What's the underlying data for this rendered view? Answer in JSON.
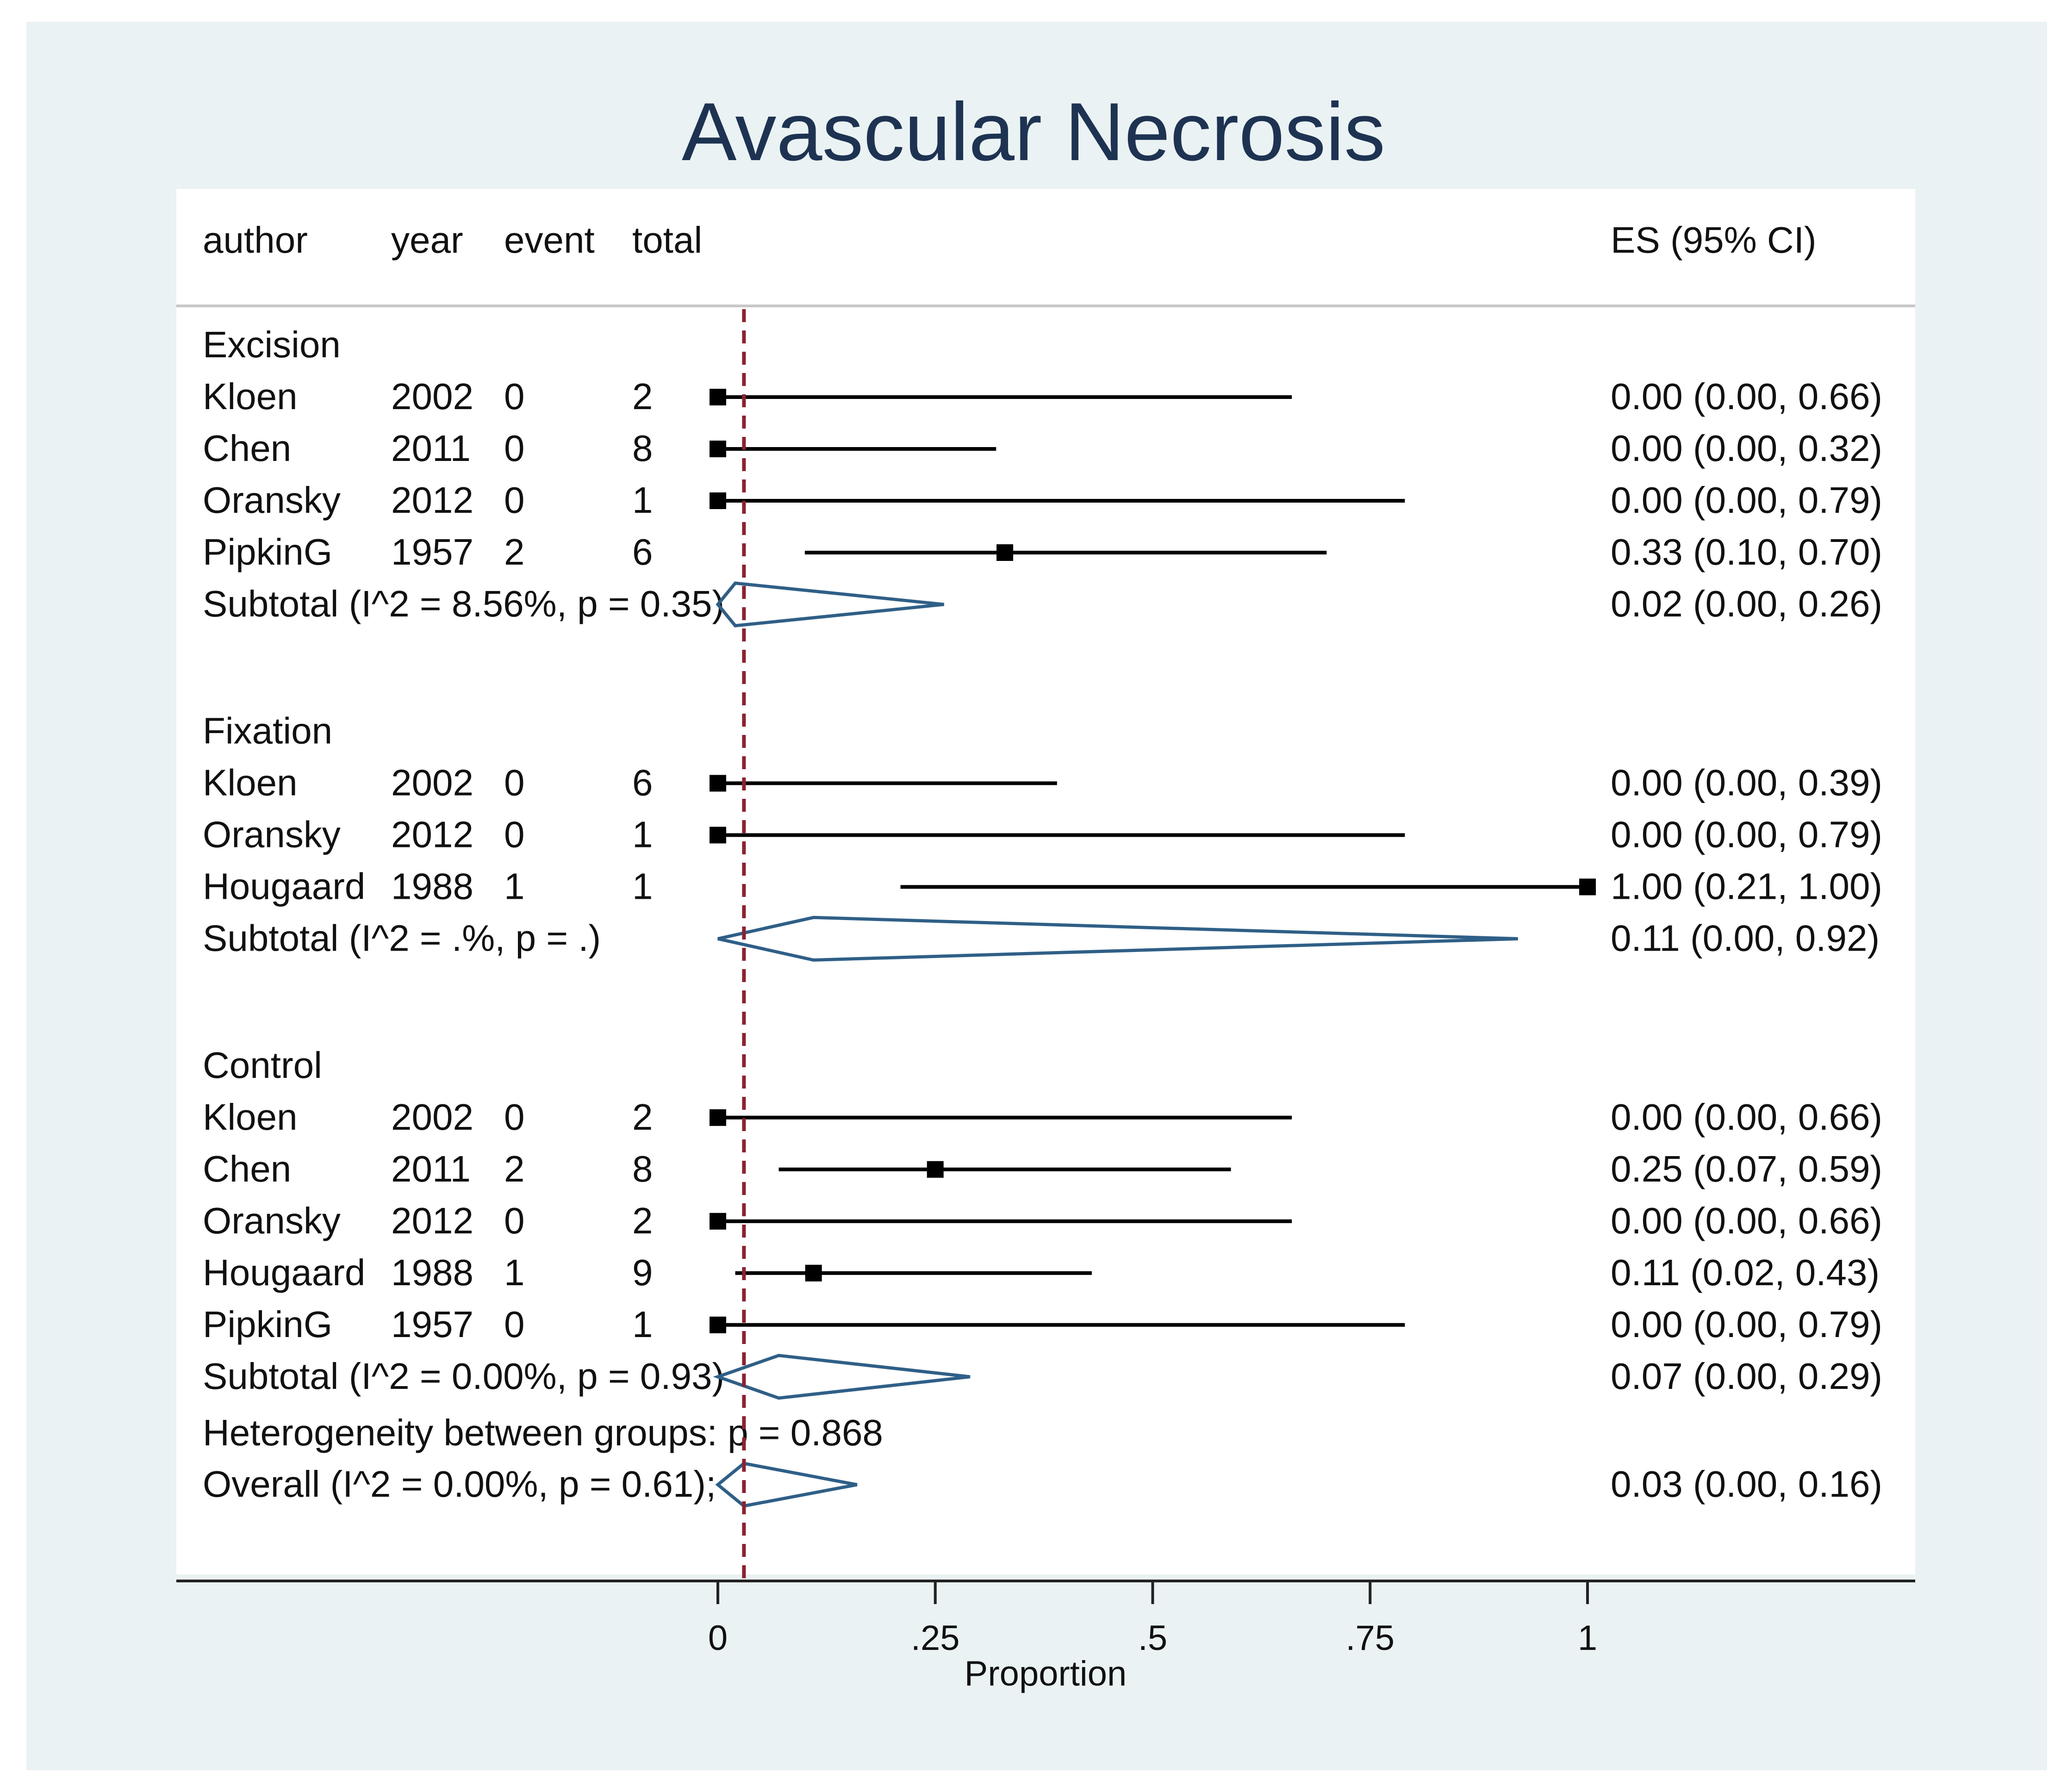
{
  "chart_data": {
    "type": "forest",
    "title": "Avascular Necrosis",
    "xlabel": "Proportion",
    "xlim": [
      0,
      1
    ],
    "xticks": [
      {
        "value": 0,
        "label": "0"
      },
      {
        "value": 0.25,
        "label": ".25"
      },
      {
        "value": 0.5,
        "label": ".5"
      },
      {
        "value": 0.75,
        "label": ".75"
      },
      {
        "value": 1,
        "label": "1"
      }
    ],
    "reference_line": 0.03,
    "header": {
      "author": "author",
      "year": "year",
      "event": "event",
      "total": "total",
      "es": "ES (95% CI)"
    },
    "groups": [
      {
        "name": "Excision",
        "studies": [
          {
            "author": "Kloen",
            "year": "2002",
            "event": "0",
            "total": "2",
            "es": 0.0,
            "lo": 0.0,
            "hi": 0.66,
            "label": "0.00 (0.00, 0.66)"
          },
          {
            "author": "Chen",
            "year": "2011",
            "event": "0",
            "total": "8",
            "es": 0.0,
            "lo": 0.0,
            "hi": 0.32,
            "label": "0.00 (0.00, 0.32)"
          },
          {
            "author": "Oransky",
            "year": "2012",
            "event": "0",
            "total": "1",
            "es": 0.0,
            "lo": 0.0,
            "hi": 0.79,
            "label": "0.00 (0.00, 0.79)"
          },
          {
            "author": "PipkinG",
            "year": "1957",
            "event": "2",
            "total": "6",
            "es": 0.33,
            "lo": 0.1,
            "hi": 0.7,
            "label": "0.33 (0.10, 0.70)"
          }
        ],
        "subtotal": {
          "text": "Subtotal  (I^2 = 8.56%, p = 0.35)",
          "es": 0.02,
          "lo": 0.0,
          "hi": 0.26,
          "label": "0.02 (0.00, 0.26)"
        }
      },
      {
        "name": "Fixation",
        "studies": [
          {
            "author": "Kloen",
            "year": "2002",
            "event": "0",
            "total": "6",
            "es": 0.0,
            "lo": 0.0,
            "hi": 0.39,
            "label": "0.00 (0.00, 0.39)"
          },
          {
            "author": "Oransky",
            "year": "2012",
            "event": "0",
            "total": "1",
            "es": 0.0,
            "lo": 0.0,
            "hi": 0.79,
            "label": "0.00 (0.00, 0.79)"
          },
          {
            "author": "Hougaard",
            "year": "1988",
            "event": "1",
            "total": "1",
            "es": 1.0,
            "lo": 0.21,
            "hi": 1.0,
            "label": "1.00 (0.21, 1.00)"
          }
        ],
        "subtotal": {
          "text": "Subtotal  (I^2 = .%, p = .)",
          "es": 0.11,
          "lo": 0.0,
          "hi": 0.92,
          "label": "0.11 (0.00, 0.92)"
        }
      },
      {
        "name": "Control",
        "studies": [
          {
            "author": "Kloen",
            "year": "2002",
            "event": "0",
            "total": "2",
            "es": 0.0,
            "lo": 0.0,
            "hi": 0.66,
            "label": "0.00 (0.00, 0.66)"
          },
          {
            "author": "Chen",
            "year": "2011",
            "event": "2",
            "total": "8",
            "es": 0.25,
            "lo": 0.07,
            "hi": 0.59,
            "label": "0.25 (0.07, 0.59)"
          },
          {
            "author": "Oransky",
            "year": "2012",
            "event": "0",
            "total": "2",
            "es": 0.0,
            "lo": 0.0,
            "hi": 0.66,
            "label": "0.00 (0.00, 0.66)"
          },
          {
            "author": "Hougaard",
            "year": "1988",
            "event": "1",
            "total": "9",
            "es": 0.11,
            "lo": 0.02,
            "hi": 0.43,
            "label": "0.11 (0.02, 0.43)"
          },
          {
            "author": "PipkinG",
            "year": "1957",
            "event": "0",
            "total": "1",
            "es": 0.0,
            "lo": 0.0,
            "hi": 0.79,
            "label": "0.00 (0.00, 0.79)"
          }
        ],
        "subtotal": {
          "text": "Subtotal  (I^2 = 0.00%, p = 0.93)",
          "es": 0.07,
          "lo": 0.0,
          "hi": 0.29,
          "label": "0.07 (0.00, 0.29)"
        }
      }
    ],
    "heterogeneity": "Heterogeneity between groups: p = 0.868",
    "overall": {
      "text": "Overall  (I^2 = 0.00%, p = 0.61);",
      "es": 0.03,
      "lo": 0.0,
      "hi": 0.16,
      "label": "0.03 (0.00, 0.16)"
    },
    "colors": {
      "diamond": "#2f5f87",
      "reference_line": "#8b2232",
      "marker": "#000000"
    }
  }
}
